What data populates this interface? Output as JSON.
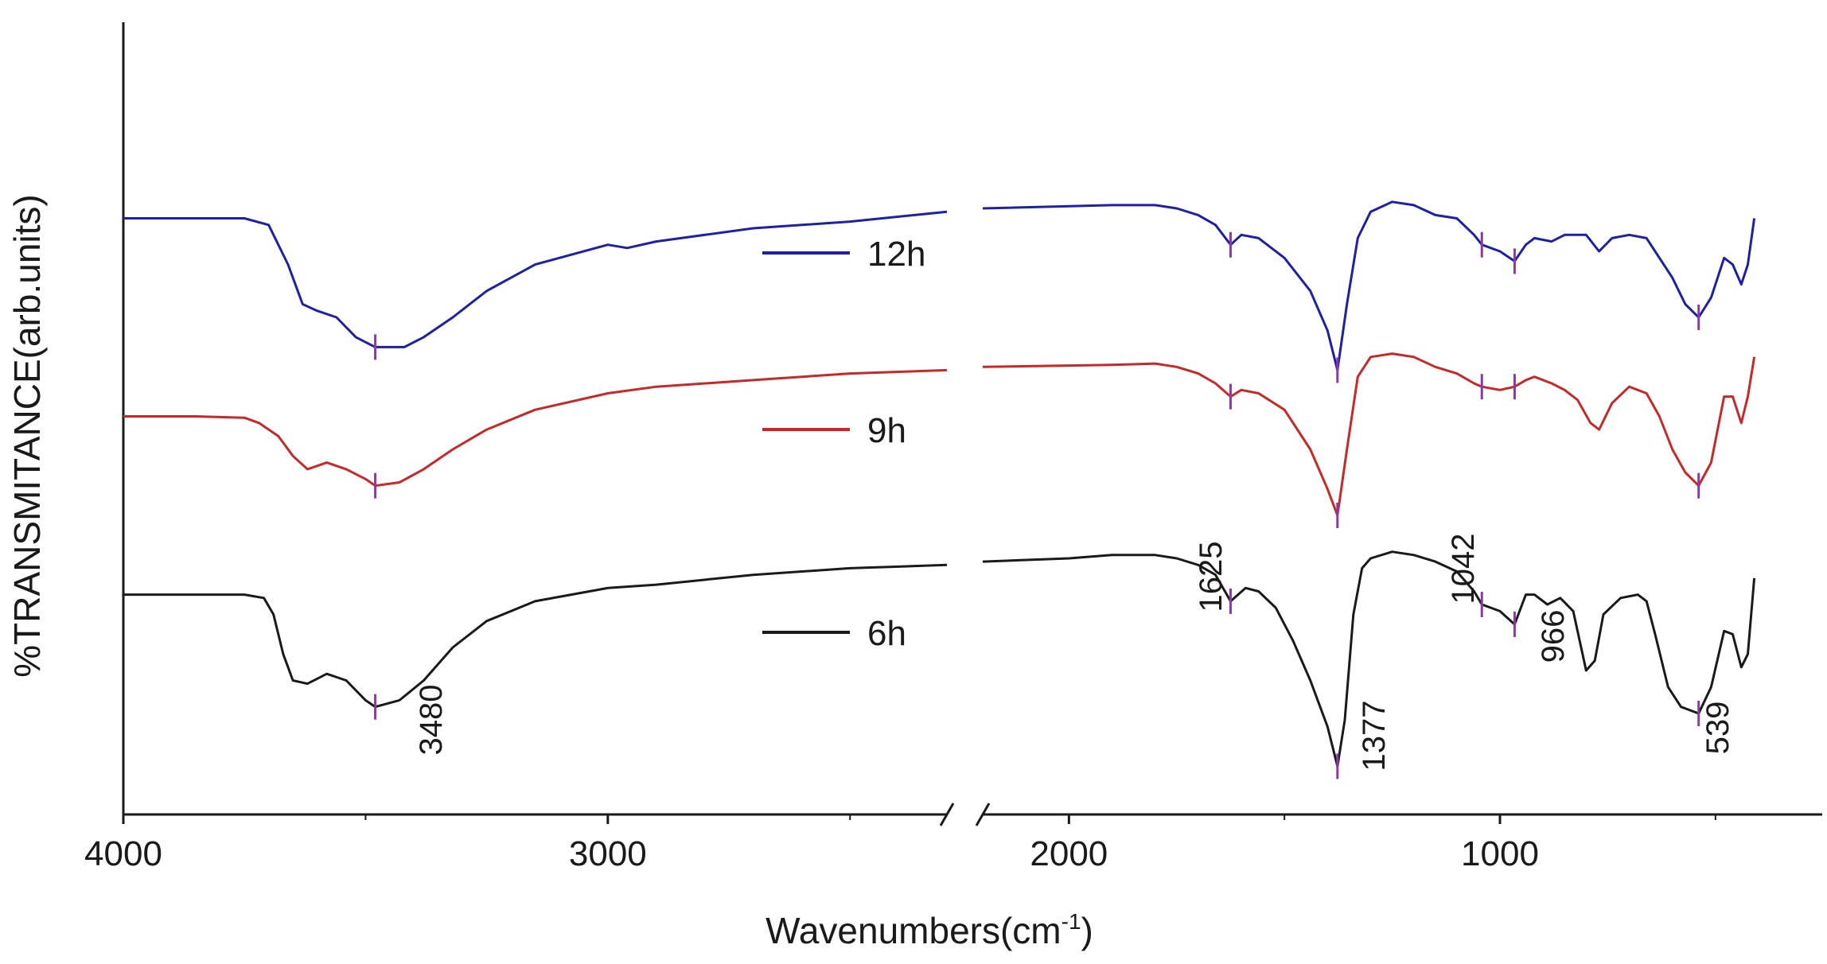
{
  "chart_data": {
    "type": "line",
    "title": "",
    "xlabel": "Wavenumbers(cm",
    "xlabel_sup": "-1",
    "xlabel_close": ")",
    "ylabel": "%TRANSMITANCE(arb.units)",
    "xlim": [
      4000,
      400
    ],
    "axis_break": [
      2300,
      2200
    ],
    "xticks": [
      4000,
      3000,
      2000,
      1000
    ],
    "xtick_labels": [
      "4000",
      "3000",
      "2000",
      "1000"
    ],
    "grid": false,
    "legend_position": "center",
    "series": [
      {
        "name": "12h",
        "color": "#1f1fa8",
        "baseline": 0.85,
        "points": [
          [
            4000,
            0.85
          ],
          [
            3750,
            0.85
          ],
          [
            3700,
            0.84
          ],
          [
            3660,
            0.78
          ],
          [
            3630,
            0.72
          ],
          [
            3600,
            0.71
          ],
          [
            3560,
            0.7
          ],
          [
            3520,
            0.67
          ],
          [
            3480,
            0.655
          ],
          [
            3420,
            0.655
          ],
          [
            3380,
            0.67
          ],
          [
            3320,
            0.7
          ],
          [
            3250,
            0.74
          ],
          [
            3150,
            0.78
          ],
          [
            3000,
            0.81
          ],
          [
            2960,
            0.805
          ],
          [
            2900,
            0.815
          ],
          [
            2700,
            0.835
          ],
          [
            2500,
            0.845
          ],
          [
            2300,
            0.86
          ],
          [
            2200,
            0.865
          ],
          [
            1900,
            0.87
          ],
          [
            1800,
            0.87
          ],
          [
            1750,
            0.865
          ],
          [
            1700,
            0.855
          ],
          [
            1660,
            0.84
          ],
          [
            1625,
            0.81
          ],
          [
            1600,
            0.825
          ],
          [
            1560,
            0.82
          ],
          [
            1500,
            0.79
          ],
          [
            1440,
            0.74
          ],
          [
            1400,
            0.68
          ],
          [
            1377,
            0.62
          ],
          [
            1355,
            0.72
          ],
          [
            1330,
            0.82
          ],
          [
            1300,
            0.86
          ],
          [
            1250,
            0.875
          ],
          [
            1200,
            0.87
          ],
          [
            1150,
            0.855
          ],
          [
            1100,
            0.85
          ],
          [
            1060,
            0.825
          ],
          [
            1042,
            0.81
          ],
          [
            1000,
            0.8
          ],
          [
            966,
            0.785
          ],
          [
            940,
            0.81
          ],
          [
            920,
            0.82
          ],
          [
            880,
            0.815
          ],
          [
            850,
            0.825
          ],
          [
            800,
            0.825
          ],
          [
            770,
            0.8
          ],
          [
            740,
            0.82
          ],
          [
            700,
            0.825
          ],
          [
            660,
            0.82
          ],
          [
            640,
            0.8
          ],
          [
            600,
            0.76
          ],
          [
            570,
            0.72
          ],
          [
            539,
            0.7
          ],
          [
            510,
            0.73
          ],
          [
            480,
            0.79
          ],
          [
            460,
            0.78
          ],
          [
            440,
            0.75
          ],
          [
            425,
            0.78
          ],
          [
            410,
            0.85
          ]
        ]
      },
      {
        "name": "9h",
        "color": "#c82828",
        "baseline": 0.55,
        "points": [
          [
            4000,
            0.55
          ],
          [
            3850,
            0.55
          ],
          [
            3750,
            0.548
          ],
          [
            3720,
            0.54
          ],
          [
            3680,
            0.52
          ],
          [
            3650,
            0.49
          ],
          [
            3620,
            0.47
          ],
          [
            3580,
            0.48
          ],
          [
            3540,
            0.47
          ],
          [
            3500,
            0.455
          ],
          [
            3480,
            0.445
          ],
          [
            3430,
            0.45
          ],
          [
            3380,
            0.47
          ],
          [
            3320,
            0.5
          ],
          [
            3250,
            0.53
          ],
          [
            3150,
            0.56
          ],
          [
            3000,
            0.585
          ],
          [
            2900,
            0.595
          ],
          [
            2700,
            0.605
          ],
          [
            2500,
            0.615
          ],
          [
            2300,
            0.62
          ],
          [
            2200,
            0.625
          ],
          [
            1900,
            0.628
          ],
          [
            1800,
            0.63
          ],
          [
            1750,
            0.625
          ],
          [
            1700,
            0.615
          ],
          [
            1660,
            0.6
          ],
          [
            1625,
            0.58
          ],
          [
            1600,
            0.59
          ],
          [
            1560,
            0.585
          ],
          [
            1500,
            0.56
          ],
          [
            1440,
            0.5
          ],
          [
            1400,
            0.44
          ],
          [
            1377,
            0.4
          ],
          [
            1355,
            0.5
          ],
          [
            1330,
            0.61
          ],
          [
            1300,
            0.64
          ],
          [
            1250,
            0.645
          ],
          [
            1200,
            0.64
          ],
          [
            1150,
            0.625
          ],
          [
            1100,
            0.615
          ],
          [
            1060,
            0.6
          ],
          [
            1042,
            0.595
          ],
          [
            1000,
            0.59
          ],
          [
            966,
            0.595
          ],
          [
            940,
            0.605
          ],
          [
            920,
            0.61
          ],
          [
            880,
            0.6
          ],
          [
            850,
            0.59
          ],
          [
            820,
            0.575
          ],
          [
            790,
            0.54
          ],
          [
            770,
            0.53
          ],
          [
            740,
            0.57
          ],
          [
            700,
            0.595
          ],
          [
            660,
            0.585
          ],
          [
            630,
            0.55
          ],
          [
            600,
            0.5
          ],
          [
            570,
            0.465
          ],
          [
            539,
            0.445
          ],
          [
            510,
            0.48
          ],
          [
            480,
            0.58
          ],
          [
            460,
            0.58
          ],
          [
            440,
            0.54
          ],
          [
            425,
            0.58
          ],
          [
            410,
            0.64
          ]
        ]
      },
      {
        "name": "6h",
        "color": "#1a1a1a",
        "baseline": 0.28,
        "points": [
          [
            4000,
            0.28
          ],
          [
            3750,
            0.28
          ],
          [
            3710,
            0.275
          ],
          [
            3690,
            0.25
          ],
          [
            3670,
            0.19
          ],
          [
            3650,
            0.15
          ],
          [
            3620,
            0.145
          ],
          [
            3580,
            0.16
          ],
          [
            3540,
            0.15
          ],
          [
            3500,
            0.12
          ],
          [
            3480,
            0.11
          ],
          [
            3430,
            0.12
          ],
          [
            3380,
            0.15
          ],
          [
            3320,
            0.2
          ],
          [
            3250,
            0.24
          ],
          [
            3150,
            0.27
          ],
          [
            3000,
            0.29
          ],
          [
            2900,
            0.295
          ],
          [
            2700,
            0.31
          ],
          [
            2500,
            0.32
          ],
          [
            2300,
            0.325
          ],
          [
            2200,
            0.33
          ],
          [
            2000,
            0.335
          ],
          [
            1900,
            0.34
          ],
          [
            1800,
            0.34
          ],
          [
            1750,
            0.335
          ],
          [
            1700,
            0.325
          ],
          [
            1660,
            0.31
          ],
          [
            1625,
            0.27
          ],
          [
            1590,
            0.29
          ],
          [
            1560,
            0.285
          ],
          [
            1520,
            0.26
          ],
          [
            1480,
            0.21
          ],
          [
            1440,
            0.15
          ],
          [
            1400,
            0.08
          ],
          [
            1377,
            0.02
          ],
          [
            1360,
            0.09
          ],
          [
            1340,
            0.25
          ],
          [
            1320,
            0.32
          ],
          [
            1300,
            0.335
          ],
          [
            1250,
            0.345
          ],
          [
            1200,
            0.34
          ],
          [
            1150,
            0.33
          ],
          [
            1100,
            0.315
          ],
          [
            1060,
            0.285
          ],
          [
            1042,
            0.265
          ],
          [
            1000,
            0.255
          ],
          [
            966,
            0.235
          ],
          [
            940,
            0.28
          ],
          [
            920,
            0.28
          ],
          [
            890,
            0.265
          ],
          [
            860,
            0.275
          ],
          [
            830,
            0.255
          ],
          [
            800,
            0.165
          ],
          [
            780,
            0.18
          ],
          [
            760,
            0.25
          ],
          [
            720,
            0.275
          ],
          [
            680,
            0.28
          ],
          [
            660,
            0.27
          ],
          [
            640,
            0.22
          ],
          [
            610,
            0.14
          ],
          [
            580,
            0.11
          ],
          [
            539,
            0.1
          ],
          [
            510,
            0.14
          ],
          [
            480,
            0.225
          ],
          [
            460,
            0.22
          ],
          [
            440,
            0.17
          ],
          [
            425,
            0.19
          ],
          [
            410,
            0.305
          ]
        ]
      }
    ],
    "peak_markers": [
      {
        "series": "12h",
        "x": [
          3480,
          1625,
          1377,
          1042,
          966,
          539
        ]
      },
      {
        "series": "9h",
        "x": [
          3480,
          1625,
          1377,
          1042,
          966,
          539
        ]
      },
      {
        "series": "6h",
        "x": [
          3480,
          1625,
          1377,
          1042,
          966,
          539
        ]
      }
    ],
    "marker_color": "#8a3aa6",
    "annotations": [
      {
        "label": "3480",
        "x": 3480
      },
      {
        "label": "1625",
        "x": 1625
      },
      {
        "label": "1377",
        "x": 1377
      },
      {
        "label": "1042",
        "x": 1042
      },
      {
        "label": "966",
        "x": 966
      },
      {
        "label": "539",
        "x": 539
      }
    ]
  }
}
